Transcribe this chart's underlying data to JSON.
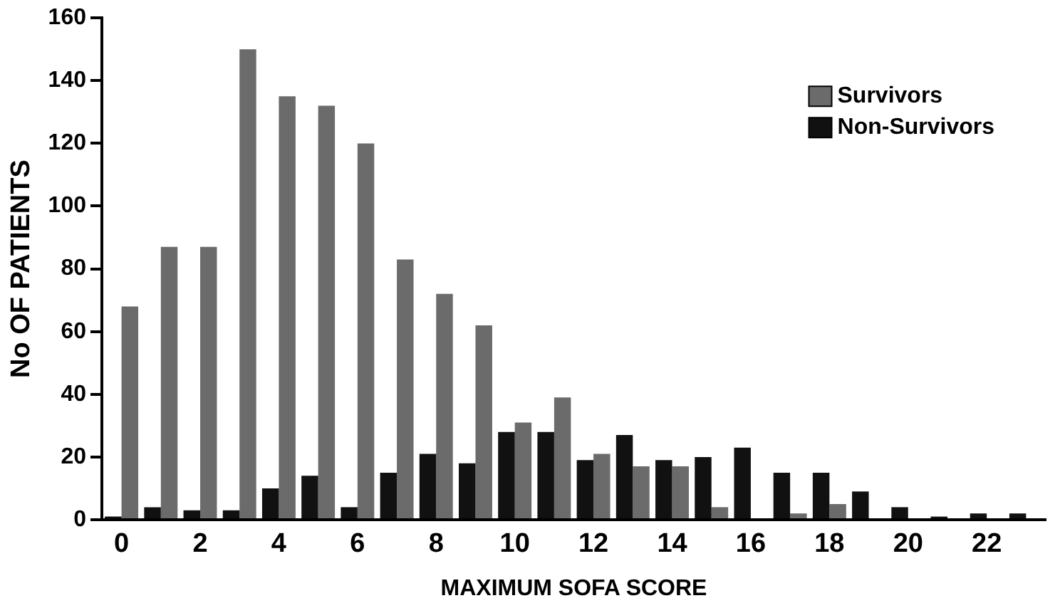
{
  "chart_data": {
    "type": "bar",
    "xlabel": "MAXIMUM SOFA SCORE",
    "ylabel": "No OF PATIENTS",
    "categories": [
      "0",
      null,
      "2",
      null,
      "4",
      null,
      "6",
      null,
      "8",
      null,
      "10",
      null,
      "12",
      null,
      "14",
      null,
      "16",
      null,
      "18",
      null,
      "20",
      null,
      "22",
      null
    ],
    "series": [
      {
        "name": "Non-Survivors",
        "color": "#111111",
        "values": [
          1,
          4,
          3,
          3,
          10,
          14,
          4,
          15,
          21,
          18,
          28,
          28,
          19,
          27,
          19,
          20,
          23,
          15,
          15,
          9,
          4,
          1,
          2,
          2
        ]
      },
      {
        "name": "Survivors",
        "color": "#6b6b6b",
        "values": [
          68,
          87,
          87,
          150,
          135,
          132,
          120,
          83,
          72,
          62,
          31,
          39,
          21,
          17,
          17,
          4,
          0,
          2,
          5,
          0,
          0,
          0,
          0,
          0
        ]
      }
    ],
    "ylim": [
      0,
      160
    ],
    "yticks": [
      0,
      20,
      40,
      60,
      80,
      100,
      120,
      140,
      160
    ],
    "grid": false,
    "legend": "top right"
  }
}
